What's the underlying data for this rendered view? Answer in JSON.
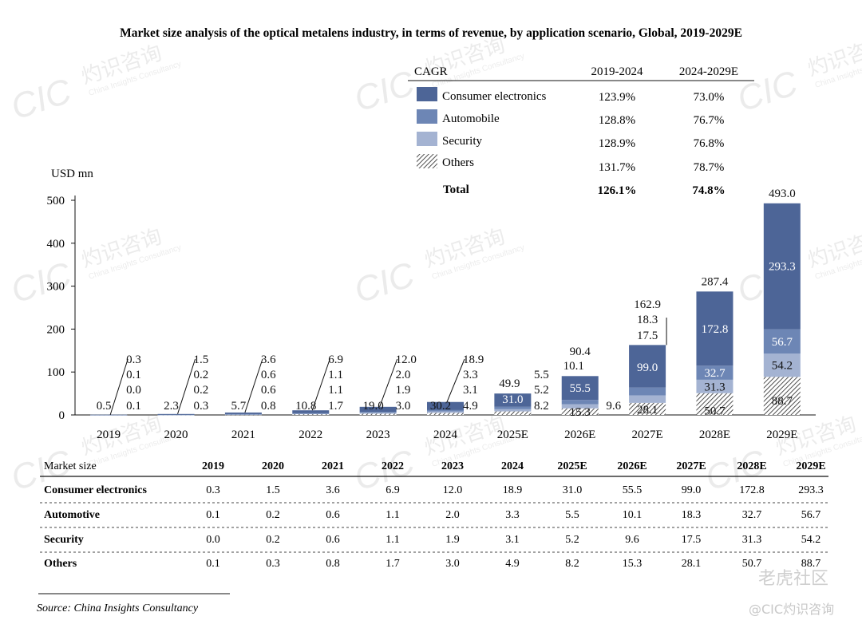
{
  "chart_data": {
    "type": "bar",
    "stacked": true,
    "title": "Market size analysis of the optical metalens industry, in terms of revenue, by application scenario, Global, 2019-2029E",
    "ylabel": "USD mn",
    "ylim": [
      0,
      500
    ],
    "yticks": [
      "500",
      "400",
      "300",
      "200",
      "100",
      "0"
    ],
    "yticks_values": [
      500,
      400,
      300,
      200,
      100,
      0
    ],
    "categories": [
      "2019",
      "2020",
      "2021",
      "2022",
      "2023",
      "2024",
      "2025E",
      "2026E",
      "2027E",
      "2028E",
      "2029E"
    ],
    "series": [
      {
        "name": "Others",
        "values": [
          0.1,
          0.3,
          0.8,
          1.7,
          3.0,
          4.9,
          8.2,
          15.3,
          28.1,
          50.7,
          88.7
        ],
        "labels": [
          "0.1",
          "0.3",
          "0.8",
          "1.7",
          "3.0",
          "4.9",
          "8.2",
          "15.3",
          "28.1",
          "50.7",
          "88.7"
        ]
      },
      {
        "name": "Security",
        "values": [
          0.0,
          0.2,
          0.6,
          1.1,
          1.9,
          3.1,
          5.2,
          9.6,
          17.5,
          31.3,
          54.2
        ],
        "labels": [
          "0.0",
          "0.2",
          "0.6",
          "1.1",
          "1.9",
          "3.1",
          "5.2",
          "9.6",
          "17.5",
          "31.3",
          "54.2"
        ]
      },
      {
        "name": "Automobile",
        "values": [
          0.1,
          0.2,
          0.6,
          1.1,
          2.0,
          3.3,
          5.5,
          10.1,
          18.3,
          32.7,
          56.7
        ],
        "labels": [
          "0.1",
          "0.2",
          "0.6",
          "1.1",
          "2.0",
          "3.3",
          "5.5",
          "10.1",
          "18.3",
          "32.7",
          "56.7"
        ]
      },
      {
        "name": "Consumer electronics",
        "values": [
          0.3,
          1.5,
          3.6,
          6.9,
          12.0,
          18.9,
          31.0,
          55.5,
          99.0,
          172.8,
          293.3
        ],
        "labels": [
          "0.3",
          "1.5",
          "3.6",
          "6.9",
          "12.0",
          "18.9",
          "31.0",
          "55.5",
          "99.0",
          "172.8",
          "293.3"
        ]
      }
    ],
    "totals": [
      0.5,
      2.3,
      5.7,
      10.8,
      19.0,
      30.2,
      49.9,
      90.4,
      162.9,
      287.4,
      493.0
    ],
    "totals_labels": [
      "0.5",
      "2.3",
      "5.7",
      "10.8",
      "19.0",
      "30.2",
      "49.9",
      "90.4",
      "162.9",
      "287.4",
      "493.0"
    ],
    "legend": {
      "header": [
        "CAGR",
        "2019-2024",
        "2024-2029E"
      ],
      "rows": [
        {
          "name": "Consumer electronics",
          "c1": "123.9%",
          "c2": "73.0%"
        },
        {
          "name": "Automobile",
          "c1": "128.8%",
          "c2": "76.7%"
        },
        {
          "name": "Security",
          "c1": "128.9%",
          "c2": "76.8%"
        },
        {
          "name": "Others",
          "c1": "131.7%",
          "c2": "78.7%"
        }
      ],
      "total": {
        "name": "Total",
        "c1": "126.1%",
        "c2": "74.8%"
      }
    }
  },
  "table": {
    "header": [
      "Market size",
      "2019",
      "2020",
      "2021",
      "2022",
      "2023",
      "2024",
      "2025E",
      "2026E",
      "2027E",
      "2028E",
      "2029E"
    ],
    "rows": [
      {
        "name": "Consumer electronics",
        "values": [
          "0.3",
          "1.5",
          "3.6",
          "6.9",
          "12.0",
          "18.9",
          "31.0",
          "55.5",
          "99.0",
          "172.8",
          "293.3"
        ]
      },
      {
        "name": "Automotive",
        "values": [
          "0.1",
          "0.2",
          "0.6",
          "1.1",
          "2.0",
          "3.3",
          "5.5",
          "10.1",
          "18.3",
          "32.7",
          "56.7"
        ]
      },
      {
        "name": "Security",
        "values": [
          "0.0",
          "0.2",
          "0.6",
          "1.1",
          "1.9",
          "3.1",
          "5.2",
          "9.6",
          "17.5",
          "31.3",
          "54.2"
        ]
      },
      {
        "name": "Others",
        "values": [
          "0.1",
          "0.3",
          "0.8",
          "1.7",
          "3.0",
          "4.9",
          "8.2",
          "15.3",
          "28.1",
          "50.7",
          "88.7"
        ]
      }
    ]
  },
  "source": "Source: China Insights Consultancy",
  "watermarks": {
    "latin": "CIC",
    "cn": "灼识咨询",
    "en": "China Insights Consultancy"
  },
  "footer_marks": {
    "forum": "老虎社区",
    "handle": "@CIC灼识咨询"
  },
  "colors": {
    "consumer": "#4d6597",
    "automobile": "#6d86b5",
    "security": "#a4b3d2",
    "others_stroke": "#222222",
    "axis": "#111111"
  }
}
